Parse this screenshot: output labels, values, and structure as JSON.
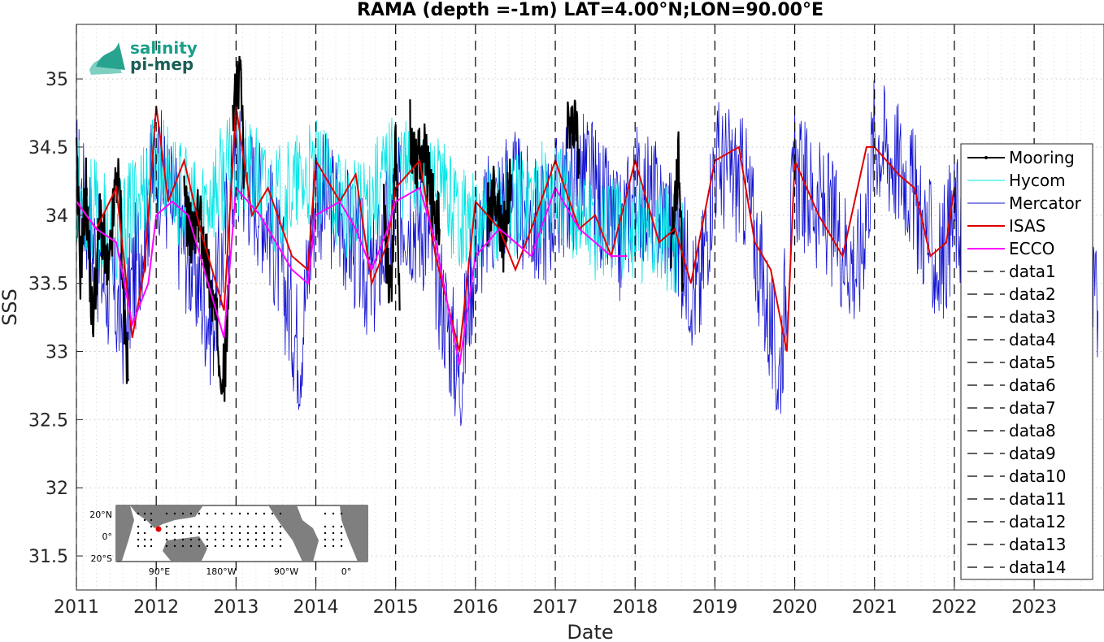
{
  "chart_data": {
    "type": "line",
    "title": "RAMA (depth =-1m) LAT=4.00°N;LON=90.00°E",
    "xlabel": "Date",
    "ylabel": "SSS",
    "xlim": [
      "2011-01-01",
      "2023-11-15"
    ],
    "ylim": [
      31.25,
      35.4
    ],
    "x_ticks": [
      "2011",
      "2012",
      "2013",
      "2014",
      "2015",
      "2016",
      "2017",
      "2018",
      "2019",
      "2020",
      "2021",
      "2022",
      "2023"
    ],
    "y_ticks": [
      "31.5",
      "32",
      "32.5",
      "33",
      "33.5",
      "34",
      "34.5",
      "35"
    ],
    "grid": true,
    "legend_position": "right",
    "vertical_lines_at": [
      "2011",
      "2012",
      "2013",
      "2014",
      "2015",
      "2016",
      "2017",
      "2018",
      "2019",
      "2020",
      "2021",
      "2022",
      "2023"
    ],
    "series": [
      {
        "name": "Mooring",
        "color": "#000000",
        "style": "solid-thick-dots",
        "segments": [
          {
            "x": [
              2011.0,
              2011.05,
              2011.12,
              2011.2,
              2011.3,
              2011.4,
              2011.5,
              2011.55,
              2011.6,
              2011.65
            ],
            "y": [
              34.4,
              33.6,
              34.2,
              33.2,
              34.0,
              33.5,
              34.3,
              34.1,
              33.2,
              32.8
            ]
          },
          {
            "x": [
              2012.35,
              2012.45,
              2012.55,
              2012.65,
              2012.75,
              2012.85,
              2012.92
            ],
            "y": [
              34.1,
              33.8,
              34.0,
              33.6,
              33.2,
              32.8,
              33.5
            ]
          },
          {
            "x": [
              2012.96,
              2013.0,
              2013.05,
              2013.1
            ],
            "y": [
              34.6,
              34.9,
              35.1,
              34.3
            ]
          },
          {
            "x": [
              2014.85,
              2014.9,
              2014.95,
              2015.0,
              2015.05
            ],
            "y": [
              34.0,
              33.6,
              33.5,
              34.5,
              33.3
            ]
          },
          {
            "x": [
              2015.18,
              2015.25,
              2015.35,
              2015.45,
              2015.55
            ],
            "y": [
              34.6,
              34.4,
              34.5,
              34.1,
              33.9
            ]
          },
          {
            "x": [
              2016.15,
              2016.25,
              2016.35,
              2016.45
            ],
            "y": [
              34.0,
              34.2,
              33.8,
              34.3
            ]
          },
          {
            "x": [
              2017.15,
              2017.2,
              2017.25,
              2017.3
            ],
            "y": [
              34.7,
              34.6,
              34.8,
              34.3
            ]
          },
          {
            "x": [
              2018.45,
              2018.55,
              2018.6
            ],
            "y": [
              33.8,
              34.4,
              33.5
            ]
          }
        ]
      },
      {
        "name": "Hycom",
        "color": "#00e5e5",
        "style": "thin",
        "x": [
          2011.0,
          2011.5,
          2012.0,
          2012.5,
          2013.0,
          2013.5,
          2014.0,
          2014.5,
          2015.0,
          2015.5,
          2016.0,
          2016.5,
          2017.0,
          2017.5,
          2018.0,
          2018.6
        ],
        "y": [
          34.2,
          33.8,
          34.4,
          34.0,
          34.4,
          34.1,
          34.3,
          34.0,
          34.4,
          34.2,
          33.9,
          34.1,
          34.2,
          33.9,
          33.9,
          33.8
        ]
      },
      {
        "name": "Mercator",
        "color": "#1010d0",
        "style": "thin",
        "x": [
          2011.0,
          2011.3,
          2011.6,
          2012.0,
          2012.3,
          2012.7,
          2013.0,
          2013.4,
          2013.8,
          2014.0,
          2014.3,
          2014.7,
          2015.0,
          2015.4,
          2015.8,
          2016.0,
          2016.4,
          2016.8,
          2017.0,
          2017.4,
          2017.8,
          2018.0,
          2018.4,
          2018.8,
          2019.0,
          2019.4,
          2019.8,
          2020.0,
          2020.4,
          2020.8,
          2021.0,
          2021.4,
          2021.8,
          2022.0,
          2022.4,
          2022.8,
          2023.0,
          2023.4,
          2023.8
        ],
        "y": [
          34.3,
          33.6,
          33.2,
          34.4,
          33.9,
          33.2,
          34.4,
          34.0,
          33.0,
          34.2,
          34.0,
          33.5,
          34.1,
          33.9,
          32.8,
          33.8,
          34.2,
          33.9,
          34.1,
          34.3,
          33.8,
          34.2,
          34.0,
          33.4,
          34.4,
          34.2,
          32.8,
          34.3,
          34.0,
          33.6,
          34.6,
          34.3,
          33.6,
          34.0,
          33.9,
          33.7,
          34.0,
          33.8,
          33.3
        ]
      },
      {
        "name": "ISAS",
        "color": "#e00000",
        "style": "thick",
        "x": [
          2011.0,
          2011.25,
          2011.5,
          2011.7,
          2011.85,
          2012.0,
          2012.15,
          2012.35,
          2012.55,
          2012.85,
          2013.0,
          2013.2,
          2013.4,
          2013.7,
          2013.9,
          2014.0,
          2014.3,
          2014.5,
          2014.7,
          2014.9,
          2015.0,
          2015.3,
          2015.5,
          2015.8,
          2016.0,
          2016.3,
          2016.5,
          2016.7,
          2017.0,
          2017.3,
          2017.5,
          2017.7,
          2018.0,
          2018.3,
          2018.5,
          2018.7,
          2019.0,
          2019.3,
          2019.5,
          2019.7,
          2019.9,
          2020.0,
          2020.3,
          2020.6,
          2020.9,
          2021.0,
          2021.3,
          2021.5,
          2021.7,
          2021.9,
          2022.0
        ],
        "y": [
          34.1,
          33.9,
          34.2,
          33.1,
          33.6,
          34.8,
          34.1,
          34.4,
          33.9,
          33.3,
          34.8,
          34.0,
          34.2,
          33.7,
          33.6,
          34.4,
          34.1,
          34.3,
          33.5,
          33.8,
          34.2,
          34.4,
          33.7,
          33.0,
          34.1,
          33.9,
          33.6,
          33.9,
          34.4,
          33.9,
          34.0,
          33.7,
          34.4,
          33.8,
          33.9,
          33.5,
          34.4,
          34.5,
          33.8,
          33.6,
          33.0,
          34.4,
          34.0,
          33.7,
          34.5,
          34.5,
          34.3,
          34.2,
          33.7,
          33.8,
          34.2
        ]
      },
      {
        "name": "ECCO",
        "color": "#ff00ff",
        "style": "thick",
        "x": [
          2011.0,
          2011.25,
          2011.5,
          2011.7,
          2011.9,
          2012.0,
          2012.2,
          2012.4,
          2012.6,
          2012.85,
          2013.0,
          2013.3,
          2013.5,
          2013.7,
          2013.9,
          2014.0,
          2014.3,
          2014.5,
          2014.7,
          2014.9,
          2015.0,
          2015.3,
          2015.5,
          2015.8,
          2016.0,
          2016.3,
          2016.5,
          2016.7,
          2017.0,
          2017.3,
          2017.5,
          2017.7,
          2017.9
        ],
        "y": [
          34.1,
          33.9,
          33.8,
          33.2,
          33.5,
          34.0,
          34.1,
          34.0,
          33.6,
          33.1,
          34.2,
          34.0,
          33.8,
          33.6,
          33.5,
          34.0,
          34.1,
          33.9,
          33.6,
          33.9,
          34.1,
          34.2,
          33.8,
          32.9,
          33.7,
          33.9,
          33.8,
          33.7,
          34.2,
          33.9,
          33.8,
          33.7,
          33.7
        ]
      },
      {
        "name": "data1",
        "color": "#000000",
        "style": "dashed"
      },
      {
        "name": "data2",
        "color": "#000000",
        "style": "dashed"
      },
      {
        "name": "data3",
        "color": "#000000",
        "style": "dashed"
      },
      {
        "name": "data4",
        "color": "#000000",
        "style": "dashed"
      },
      {
        "name": "data5",
        "color": "#000000",
        "style": "dashed"
      },
      {
        "name": "data6",
        "color": "#000000",
        "style": "dashed"
      },
      {
        "name": "data7",
        "color": "#000000",
        "style": "dashed"
      },
      {
        "name": "data8",
        "color": "#000000",
        "style": "dashed"
      },
      {
        "name": "data9",
        "color": "#000000",
        "style": "dashed"
      },
      {
        "name": "data10",
        "color": "#000000",
        "style": "dashed"
      },
      {
        "name": "data11",
        "color": "#000000",
        "style": "dashed"
      },
      {
        "name": "data12",
        "color": "#000000",
        "style": "dashed"
      },
      {
        "name": "data13",
        "color": "#000000",
        "style": "dashed"
      },
      {
        "name": "data14",
        "color": "#000000",
        "style": "dashed"
      }
    ]
  },
  "logo": {
    "line1": "salinity",
    "line2": "pi-mep",
    "color": "#1a9e8a"
  },
  "inset_map": {
    "lat_labels": [
      "20°N",
      "0°",
      "20°S"
    ],
    "lon_labels": [
      "90°E",
      "180°W",
      "90°W",
      "0°"
    ]
  }
}
